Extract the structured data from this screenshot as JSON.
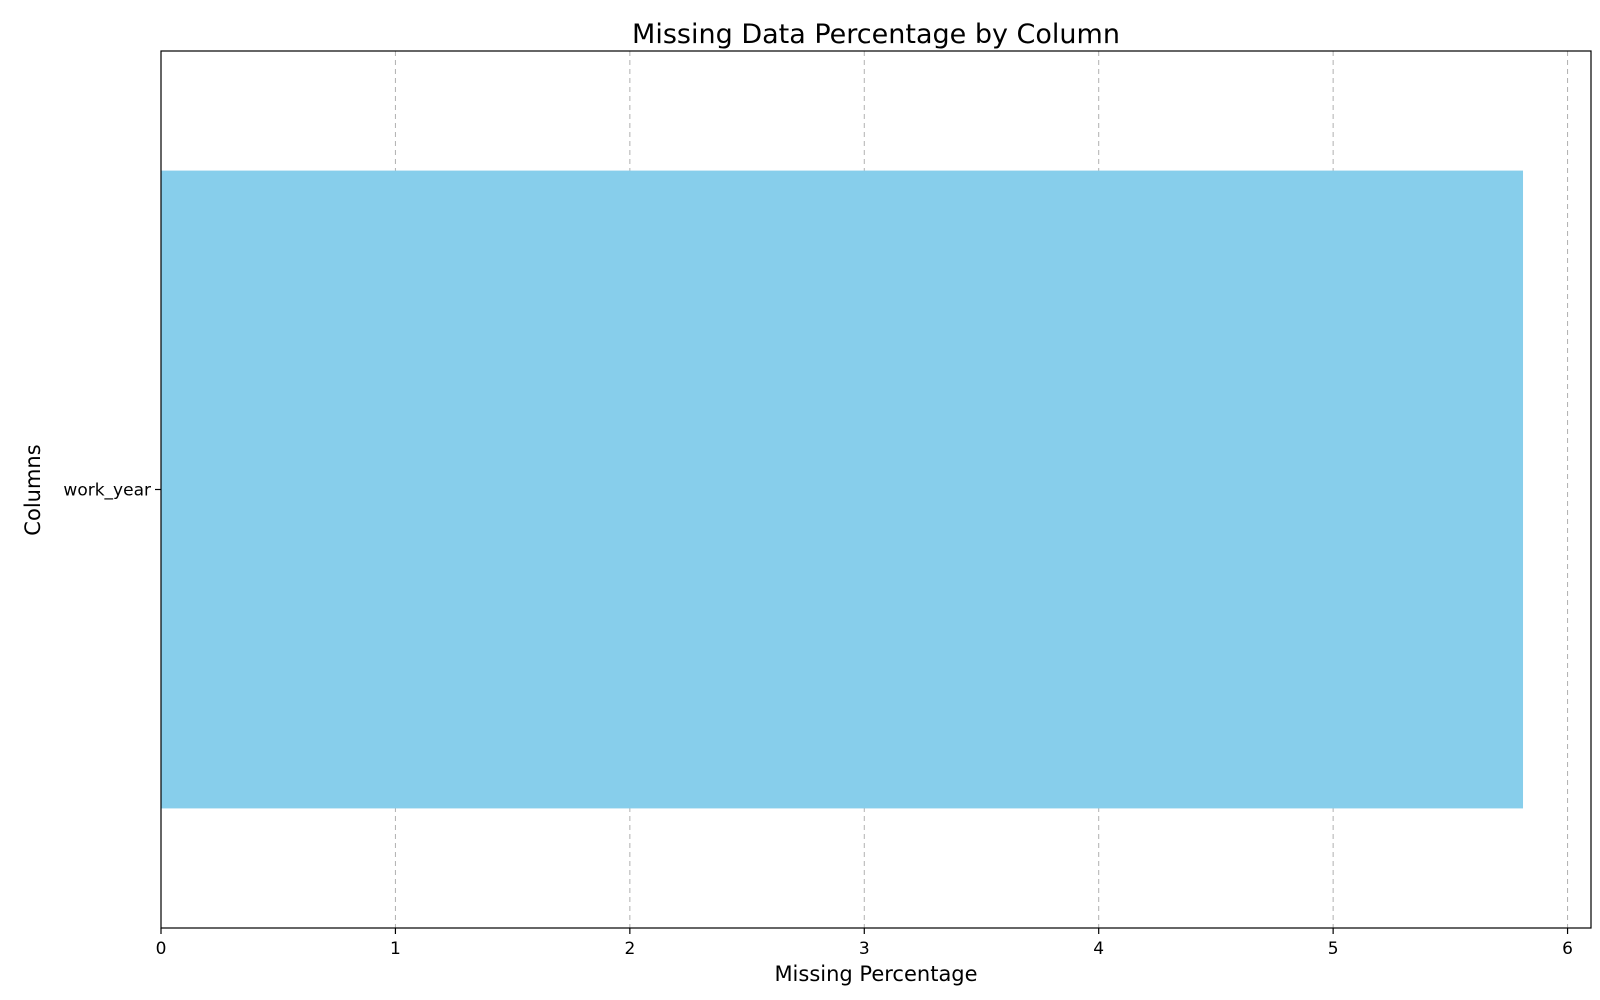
{
  "chart_data": {
    "type": "bar",
    "orientation": "horizontal",
    "title": "Missing Data Percentage by Column",
    "xlabel": "Missing Percentage",
    "ylabel": "Columns",
    "categories": [
      "work_year"
    ],
    "values": [
      5.81
    ],
    "xlim": [
      0,
      6.1
    ],
    "xticks": [
      0,
      1,
      2,
      3,
      4,
      5,
      6
    ],
    "grid": "x-major-dashed",
    "bar_color": "#87ceeb",
    "legend": "none"
  }
}
